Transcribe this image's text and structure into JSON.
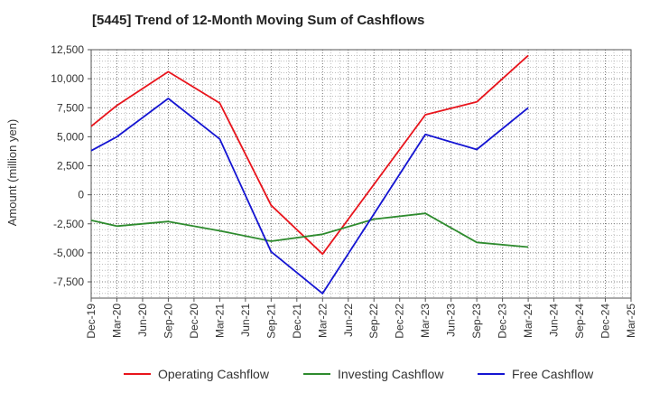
{
  "chart_data": {
    "type": "line",
    "title": "[5445]  Trend of 12-Month Moving Sum of Cashflows",
    "xlabel": "",
    "ylabel": "Amount (million yen)",
    "categories": [
      "Dec-19",
      "Mar-20",
      "Jun-20",
      "Sep-20",
      "Dec-20",
      "Mar-21",
      "Jun-21",
      "Sep-21",
      "Dec-21",
      "Mar-22",
      "Jun-22",
      "Sep-22",
      "Dec-22",
      "Mar-23",
      "Jun-23",
      "Sep-23",
      "Dec-23",
      "Mar-24",
      "Jun-24",
      "Sep-24",
      "Dec-24",
      "Mar-25"
    ],
    "y_ticks": [
      12500,
      10000,
      7500,
      5000,
      2500,
      0,
      -2500,
      -5000,
      -7500
    ],
    "y_tick_labels": [
      "12,500",
      "10,000",
      "7,500",
      "5,000",
      "2,500",
      "0",
      "-2,500",
      "-5,000",
      "-7,500"
    ],
    "ylim": [
      -8900,
      12500
    ],
    "grid": true,
    "legend_position": "bottom",
    "series": [
      {
        "name": "Operating Cashflow",
        "color": "#e8141c",
        "values": [
          5900,
          7700,
          null,
          10600,
          null,
          7900,
          null,
          -900,
          null,
          -5100,
          null,
          null,
          null,
          6900,
          null,
          8000,
          null,
          12000,
          null,
          null,
          null,
          null
        ]
      },
      {
        "name": "Investing Cashflow",
        "color": "#2e8b2e",
        "values": [
          -2200,
          -2700,
          null,
          -2300,
          null,
          -3100,
          null,
          -4000,
          null,
          -3400,
          null,
          -2100,
          null,
          -1600,
          null,
          -4100,
          null,
          -4500,
          null,
          null,
          null,
          null
        ]
      },
      {
        "name": "Free Cashflow",
        "color": "#1414d2",
        "values": [
          3800,
          5000,
          null,
          8300,
          null,
          4800,
          null,
          -4900,
          null,
          -8500,
          null,
          null,
          null,
          5200,
          null,
          3900,
          null,
          7500,
          null,
          null,
          null,
          null
        ]
      }
    ]
  }
}
